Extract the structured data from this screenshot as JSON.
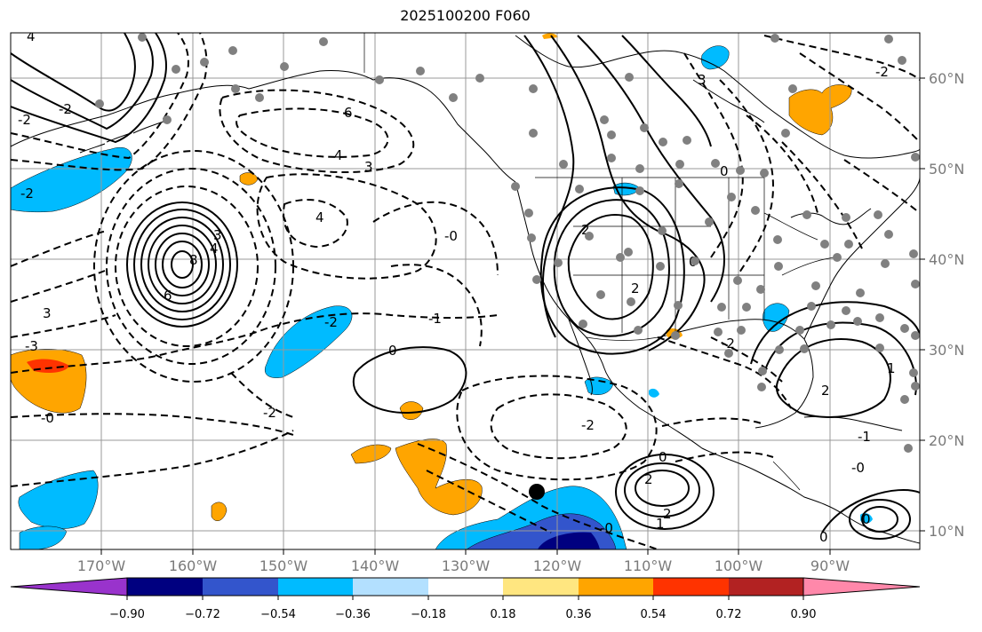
{
  "title": "2025100200 F060",
  "map": {
    "lon_range": [
      -180,
      -80
    ],
    "lat_range": [
      8,
      65
    ],
    "lat_labels": [
      "10°N",
      "20°N",
      "30°N",
      "40°N",
      "50°N",
      "60°N"
    ],
    "lon_labels": [
      "170°W",
      "160°W",
      "150°W",
      "140°W",
      "130°W",
      "120°W",
      "110°W",
      "100°W",
      "90°W"
    ],
    "contour_labels": [
      {
        "text": "4"
      },
      {
        "text": "8"
      },
      {
        "text": "6"
      },
      {
        "text": "3"
      },
      {
        "text": "-2"
      },
      {
        "text": "6"
      },
      {
        "text": "4"
      },
      {
        "text": "3"
      },
      {
        "text": "4"
      },
      {
        "text": "3"
      },
      {
        "text": "-3"
      },
      {
        "text": "-2"
      },
      {
        "text": "-0"
      },
      {
        "text": "0"
      },
      {
        "text": "-2"
      },
      {
        "text": "-1"
      },
      {
        "text": "-0"
      },
      {
        "text": "-0"
      },
      {
        "text": "2"
      },
      {
        "text": "-2"
      },
      {
        "text": "2"
      },
      {
        "text": "0"
      },
      {
        "text": "3"
      },
      {
        "text": "-2"
      },
      {
        "text": "0"
      },
      {
        "text": "4"
      },
      {
        "text": "2"
      },
      {
        "text": "-2"
      },
      {
        "text": "-1"
      },
      {
        "text": "-0"
      },
      {
        "text": "1"
      },
      {
        "text": "2"
      },
      {
        "text": "0"
      },
      {
        "text": "2"
      },
      {
        "text": "1"
      },
      {
        "text": "0"
      },
      {
        "text": "0"
      },
      {
        "text": "-2"
      },
      {
        "text": "-2"
      }
    ]
  },
  "colorbar": {
    "colors": [
      "#9933cc",
      "#000080",
      "#3355cc",
      "#00bbff",
      "#b3e0ff",
      "#ffffff",
      "#ffe680",
      "#ffa500",
      "#ff3300",
      "#b22222",
      "#ff88aa"
    ],
    "labels": [
      "−0.90",
      "−0.72",
      "−0.54",
      "−0.36",
      "−0.18",
      "0.18",
      "0.36",
      "0.54",
      "0.72",
      "0.90"
    ]
  }
}
